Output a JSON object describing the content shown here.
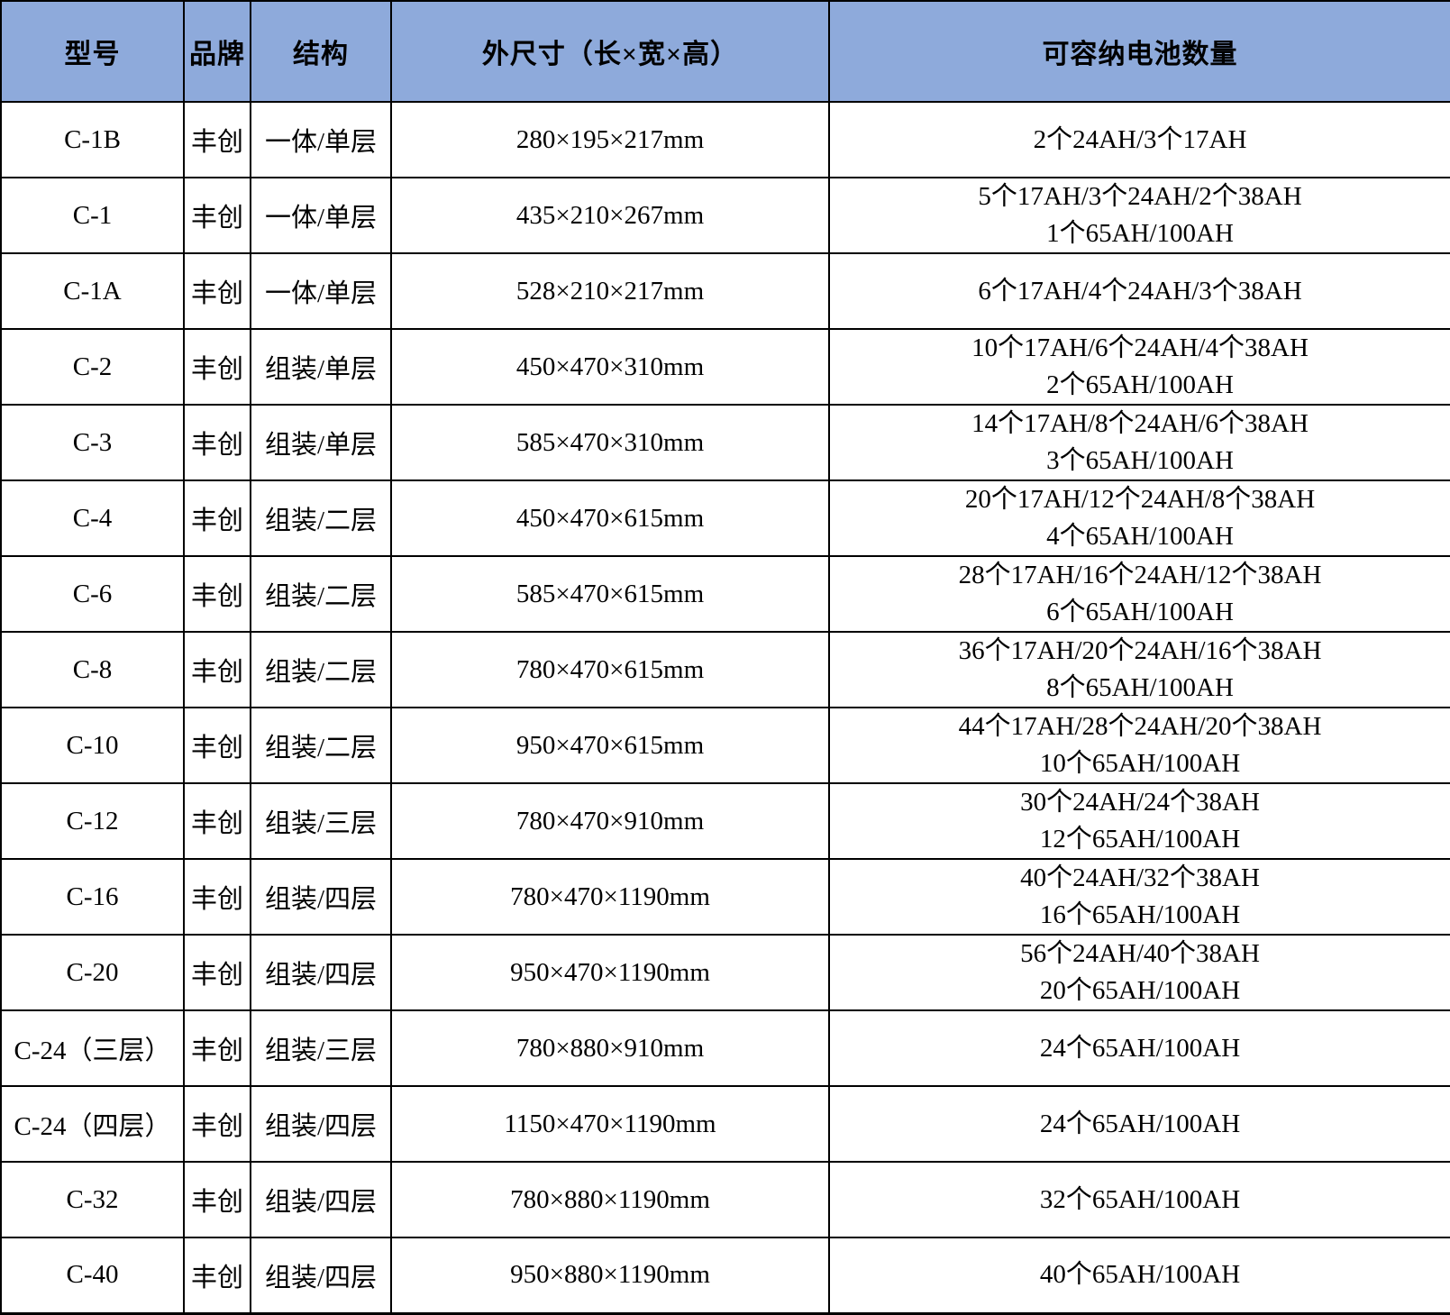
{
  "colors": {
    "header_background": "#8EAADB",
    "grid_border": "#000000",
    "text": "#000000",
    "body_background": "#FFFFFF"
  },
  "chart_data": {
    "type": "table",
    "columns": [
      "型号",
      "品牌",
      "结构",
      "外尺寸（长×宽×高）",
      "可容纳电池数量"
    ],
    "rows": [
      {
        "model": "C-1B",
        "brand": "丰创",
        "structure": "一体/单层",
        "dimensions": "280×195×217mm",
        "capacity": [
          "2个24AH/3个17AH"
        ]
      },
      {
        "model": "C-1",
        "brand": "丰创",
        "structure": "一体/单层",
        "dimensions": "435×210×267mm",
        "capacity": [
          "5个17AH/3个24AH/2个38AH",
          "1个65AH/100AH"
        ]
      },
      {
        "model": "C-1A",
        "brand": "丰创",
        "structure": "一体/单层",
        "dimensions": "528×210×217mm",
        "capacity": [
          "6个17AH/4个24AH/3个38AH"
        ]
      },
      {
        "model": "C-2",
        "brand": "丰创",
        "structure": "组装/单层",
        "dimensions": "450×470×310mm",
        "capacity": [
          "10个17AH/6个24AH/4个38AH",
          "2个65AH/100AH"
        ]
      },
      {
        "model": "C-3",
        "brand": "丰创",
        "structure": "组装/单层",
        "dimensions": "585×470×310mm",
        "capacity": [
          "14个17AH/8个24AH/6个38AH",
          "3个65AH/100AH"
        ]
      },
      {
        "model": "C-4",
        "brand": "丰创",
        "structure": "组装/二层",
        "dimensions": "450×470×615mm",
        "capacity": [
          "20个17AH/12个24AH/8个38AH",
          "4个65AH/100AH"
        ]
      },
      {
        "model": "C-6",
        "brand": "丰创",
        "structure": "组装/二层",
        "dimensions": "585×470×615mm",
        "capacity": [
          "28个17AH/16个24AH/12个38AH",
          "6个65AH/100AH"
        ]
      },
      {
        "model": "C-8",
        "brand": "丰创",
        "structure": "组装/二层",
        "dimensions": "780×470×615mm",
        "capacity": [
          "36个17AH/20个24AH/16个38AH",
          "8个65AH/100AH"
        ]
      },
      {
        "model": "C-10",
        "brand": "丰创",
        "structure": "组装/二层",
        "dimensions": "950×470×615mm",
        "capacity": [
          "44个17AH/28个24AH/20个38AH",
          "10个65AH/100AH"
        ]
      },
      {
        "model": "C-12",
        "brand": "丰创",
        "structure": "组装/三层",
        "dimensions": "780×470×910mm",
        "capacity": [
          "30个24AH/24个38AH",
          "12个65AH/100AH"
        ]
      },
      {
        "model": "C-16",
        "brand": "丰创",
        "structure": "组装/四层",
        "dimensions": "780×470×1190mm",
        "capacity": [
          "40个24AH/32个38AH",
          "16个65AH/100AH"
        ]
      },
      {
        "model": "C-20",
        "brand": "丰创",
        "structure": "组装/四层",
        "dimensions": "950×470×1190mm",
        "capacity": [
          "56个24AH/40个38AH",
          "20个65AH/100AH"
        ]
      },
      {
        "model": "C-24（三层）",
        "brand": "丰创",
        "structure": "组装/三层",
        "dimensions": "780×880×910mm",
        "capacity": [
          "24个65AH/100AH"
        ]
      },
      {
        "model": "C-24（四层）",
        "brand": "丰创",
        "structure": "组装/四层",
        "dimensions": "1150×470×1190mm",
        "capacity": [
          "24个65AH/100AH"
        ]
      },
      {
        "model": "C-32",
        "brand": "丰创",
        "structure": "组装/四层",
        "dimensions": "780×880×1190mm",
        "capacity": [
          "32个65AH/100AH"
        ]
      },
      {
        "model": "C-40",
        "brand": "丰创",
        "structure": "组装/四层",
        "dimensions": "950×880×1190mm",
        "capacity": [
          "40个65AH/100AH"
        ]
      }
    ]
  }
}
